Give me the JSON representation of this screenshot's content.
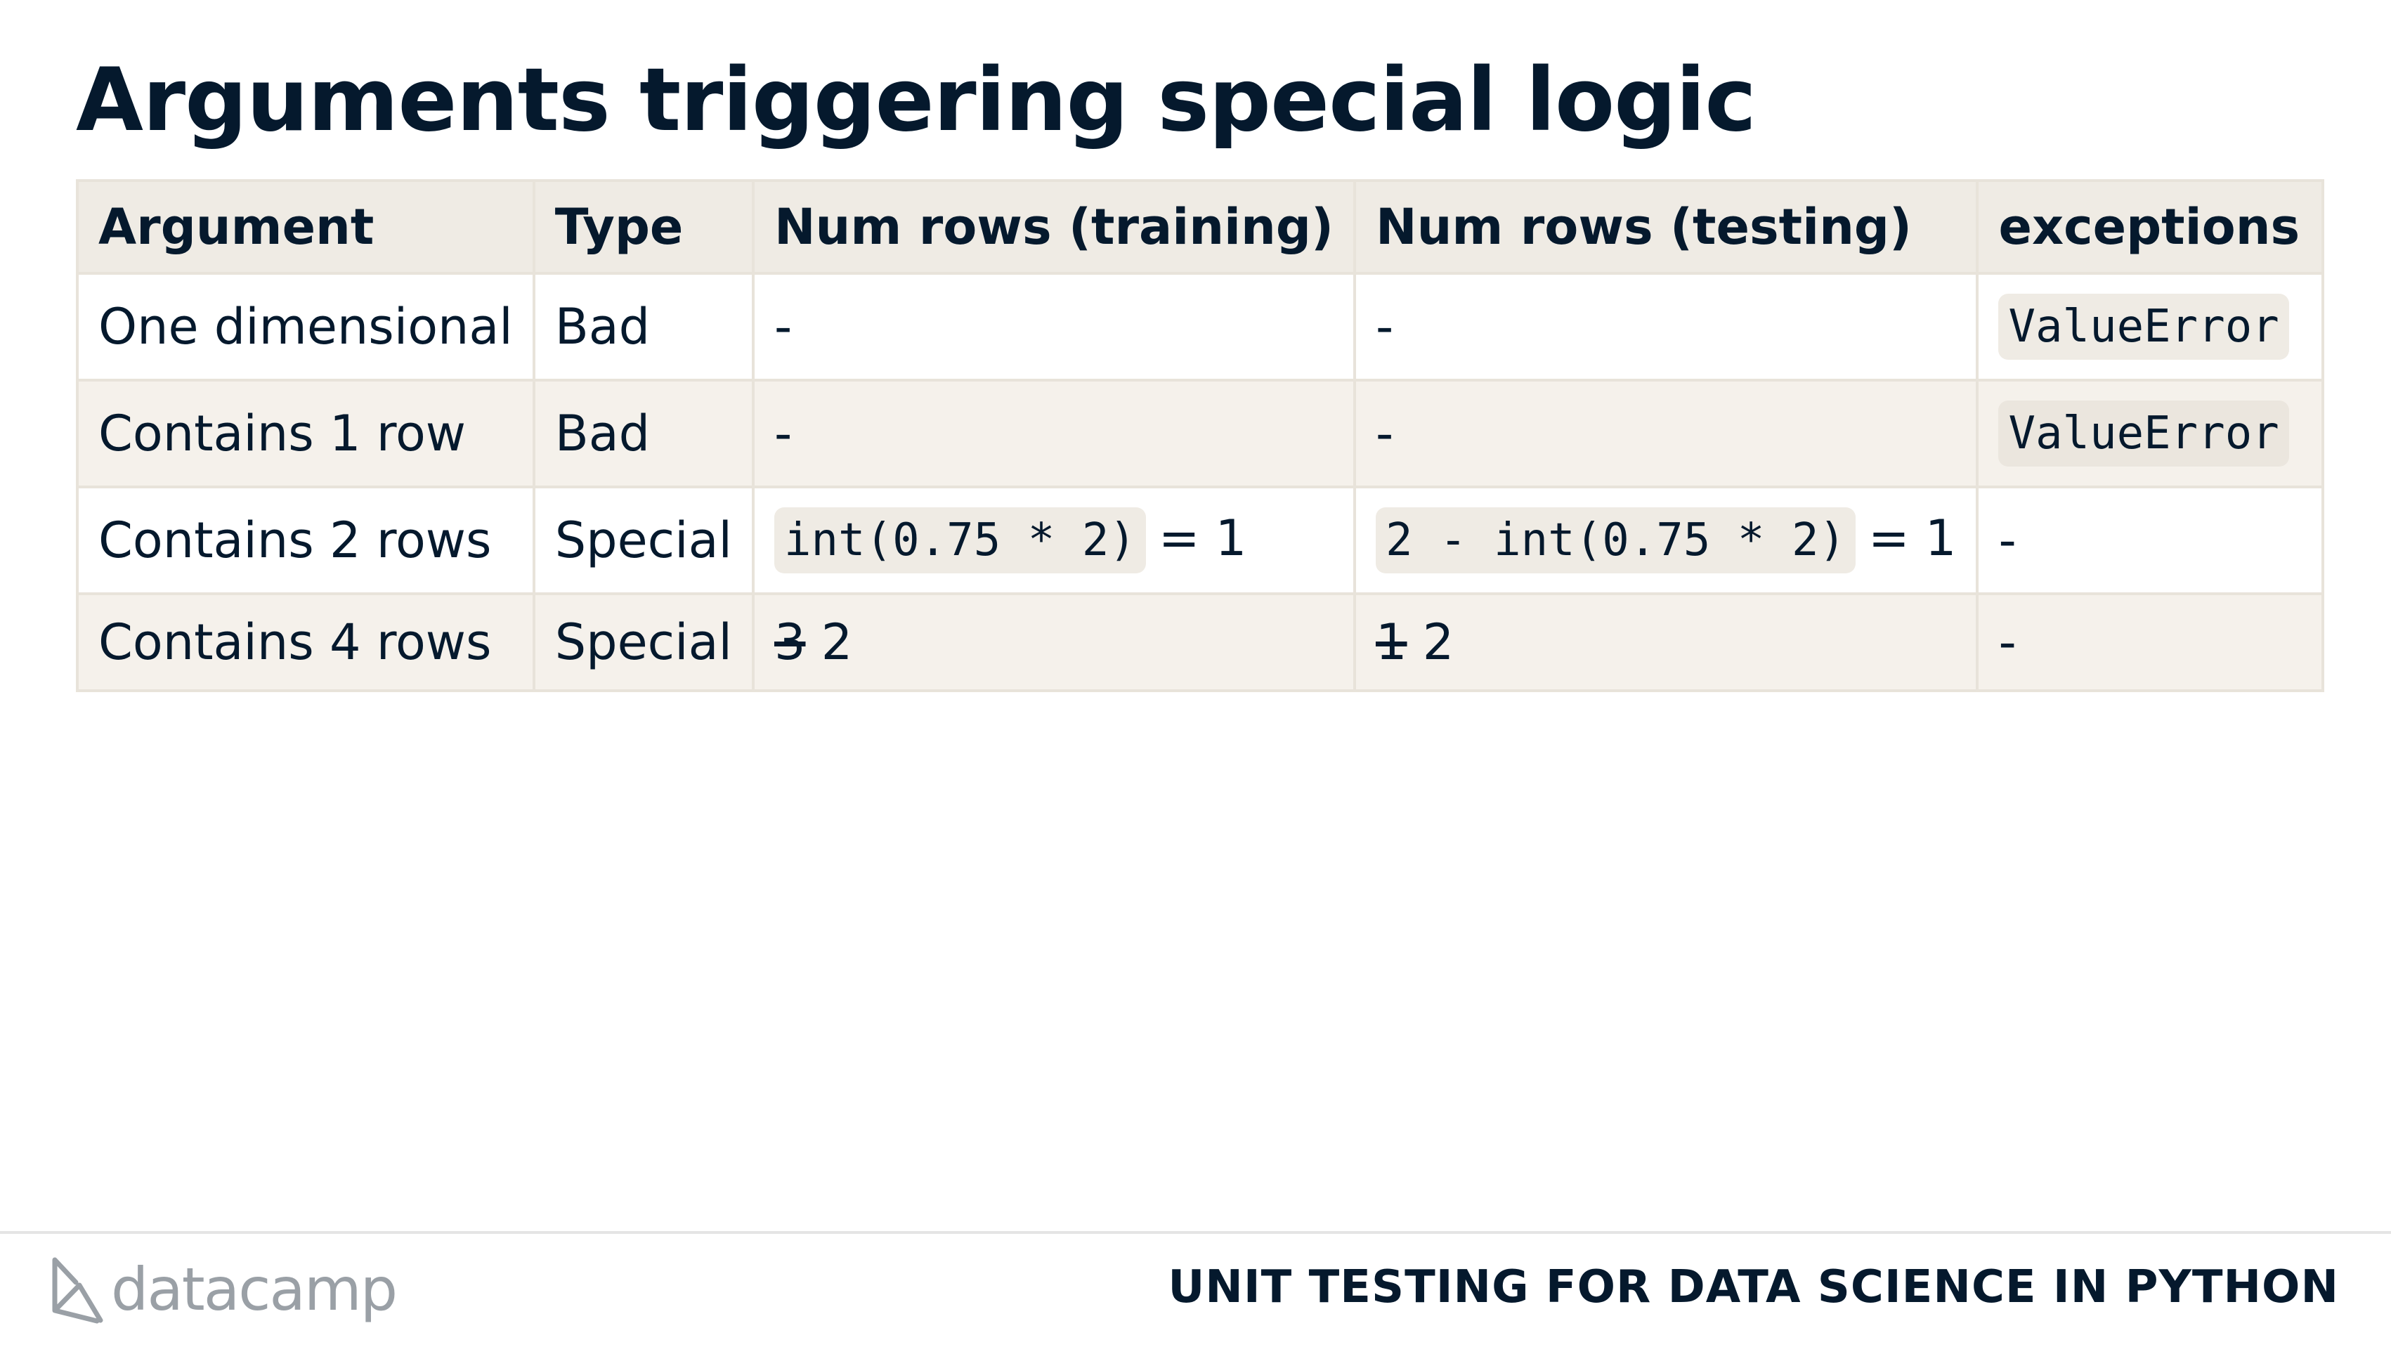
{
  "title": "Arguments triggering special logic",
  "table": {
    "headers": [
      "Argument",
      "Type",
      "Num rows (training)",
      "Num rows (testing)",
      "exceptions"
    ],
    "rows": [
      {
        "argument": "One dimensional",
        "type": "Bad",
        "training": "-",
        "testing": "-",
        "exception_code": "ValueError"
      },
      {
        "argument": "Contains 1 row",
        "type": "Bad",
        "training": "-",
        "testing": "-",
        "exception_code": "ValueError"
      },
      {
        "argument": "Contains 2 rows",
        "type": "Special",
        "training_code": "int(0.75 * 2)",
        "training_suffix": "= 1",
        "testing_code": "2 - int(0.75 * 2)",
        "testing_suffix": "= 1",
        "exception": "-"
      },
      {
        "argument": "Contains 4 rows",
        "type": "Special",
        "training_struck": "3",
        "training_value": "2",
        "testing_struck": "1",
        "testing_value": "2",
        "exception": "-"
      }
    ]
  },
  "footer": {
    "logo_text": "datacamp",
    "logo_icon": "datacamp-logo-icon",
    "course_title": "UNIT TESTING FOR DATA SCIENCE IN PYTHON"
  }
}
